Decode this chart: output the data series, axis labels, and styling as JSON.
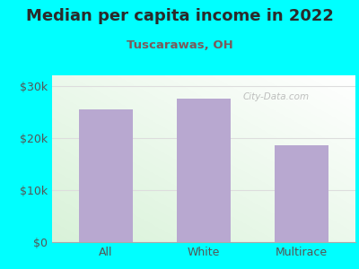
{
  "title": "Median per capita income in 2022",
  "subtitle": "Tuscarawas, OH",
  "categories": [
    "All",
    "White",
    "Multirace"
  ],
  "values": [
    25500,
    27500,
    18500
  ],
  "bar_color": "#b8a8d0",
  "background_color": "#00FFFF",
  "title_color": "#2a2a2a",
  "subtitle_color": "#7a5a5a",
  "tick_color": "#555555",
  "ylim": [
    0,
    32000
  ],
  "yticks": [
    0,
    10000,
    20000,
    30000
  ],
  "ytick_labels": [
    "$0",
    "$10k",
    "$20k",
    "$30k"
  ],
  "watermark": "City-Data.com",
  "title_fontsize": 13,
  "subtitle_fontsize": 9.5,
  "tick_fontsize": 9,
  "grid_color": "#dddddd",
  "plot_bg_left": "#d8f0d8",
  "plot_bg_right": "#f8f8ff"
}
